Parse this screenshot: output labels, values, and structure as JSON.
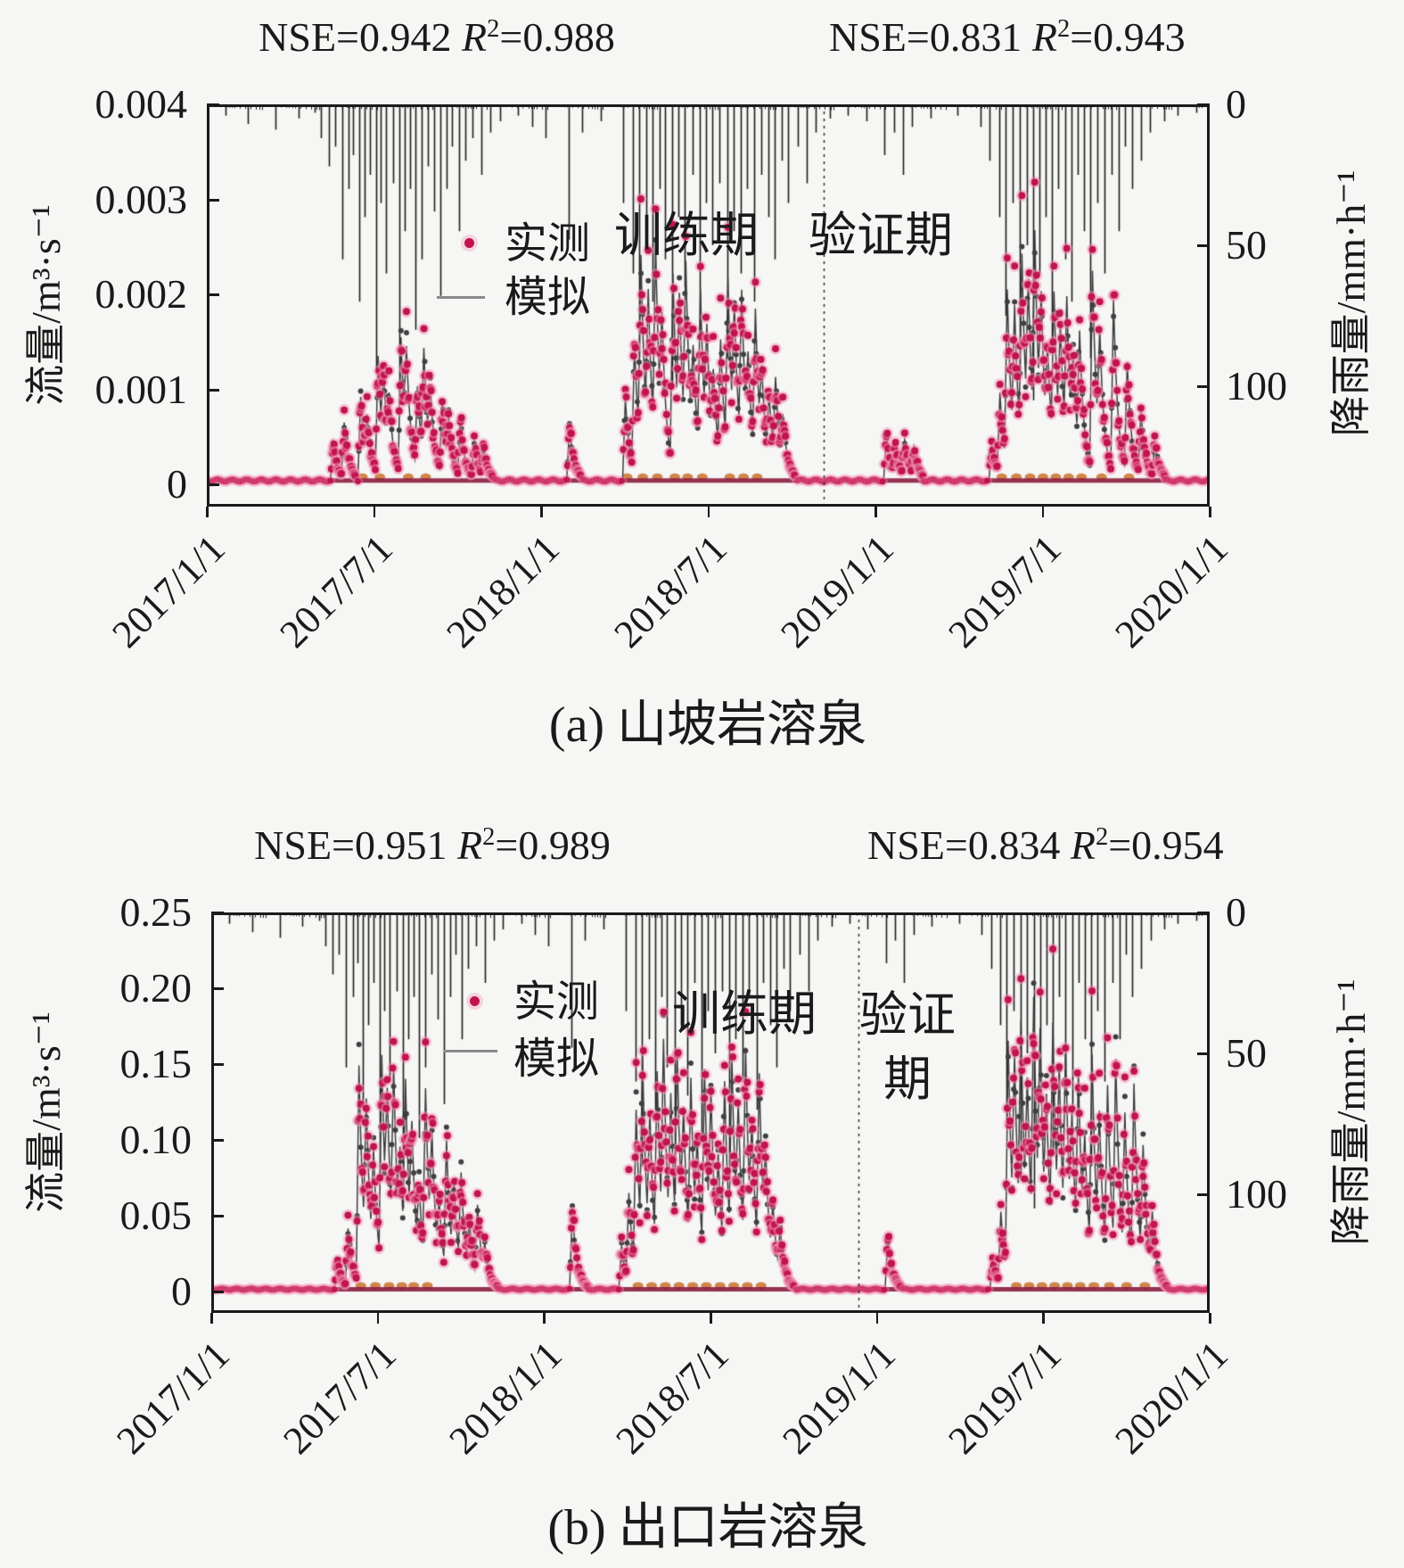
{
  "symbols": {
    "r": "R",
    "sup2": "2"
  },
  "colors": {
    "background": "#f6f6f4",
    "text": "#1a1a1a",
    "observed": "#c0134f",
    "observed_halo": "#f291b4",
    "simulated": "#3c3c3c",
    "rain": "#1c1c1c",
    "baseline": "#8c1d3f",
    "accent_orange": "#c9722c"
  },
  "rain_events_days": [
    [
      20,
      4
    ],
    [
      45,
      7
    ],
    [
      75,
      9
    ],
    [
      100,
      5
    ],
    [
      118,
      3
    ],
    [
      125,
      12
    ],
    [
      133,
      22
    ],
    [
      140,
      15
    ],
    [
      148,
      55
    ],
    [
      155,
      30
    ],
    [
      160,
      18
    ],
    [
      166,
      70
    ],
    [
      172,
      40
    ],
    [
      178,
      25
    ],
    [
      185,
      95
    ],
    [
      190,
      35
    ],
    [
      196,
      60
    ],
    [
      203,
      28
    ],
    [
      210,
      105
    ],
    [
      216,
      45
    ],
    [
      222,
      30
    ],
    [
      228,
      80
    ],
    [
      235,
      55
    ],
    [
      241,
      22
    ],
    [
      248,
      38
    ],
    [
      255,
      68
    ],
    [
      262,
      30
    ],
    [
      268,
      15
    ],
    [
      275,
      45
    ],
    [
      282,
      20
    ],
    [
      290,
      12
    ],
    [
      300,
      25
    ],
    [
      310,
      10
    ],
    [
      320,
      6
    ],
    [
      340,
      4
    ],
    [
      355,
      8
    ],
    [
      370,
      12
    ],
    [
      395,
      48
    ],
    [
      410,
      10
    ],
    [
      430,
      6
    ],
    [
      455,
      35
    ],
    [
      465,
      60
    ],
    [
      472,
      90
    ],
    [
      480,
      45
    ],
    [
      487,
      70
    ],
    [
      494,
      30
    ],
    [
      500,
      55
    ],
    [
      508,
      100
    ],
    [
      515,
      40
    ],
    [
      522,
      65
    ],
    [
      530,
      25
    ],
    [
      538,
      80
    ],
    [
      545,
      35
    ],
    [
      552,
      50
    ],
    [
      560,
      28
    ],
    [
      568,
      90
    ],
    [
      575,
      45
    ],
    [
      583,
      60
    ],
    [
      590,
      30
    ],
    [
      598,
      70
    ],
    [
      605,
      25
    ],
    [
      613,
      40
    ],
    [
      620,
      55
    ],
    [
      628,
      20
    ],
    [
      635,
      35
    ],
    [
      645,
      15
    ],
    [
      655,
      28
    ],
    [
      665,
      10
    ],
    [
      680,
      5
    ],
    [
      700,
      4
    ],
    [
      720,
      6
    ],
    [
      740,
      18
    ],
    [
      750,
      10
    ],
    [
      760,
      25
    ],
    [
      770,
      8
    ],
    [
      790,
      5
    ],
    [
      820,
      4
    ],
    [
      845,
      8
    ],
    [
      855,
      20
    ],
    [
      865,
      40
    ],
    [
      872,
      75
    ],
    [
      880,
      35
    ],
    [
      888,
      95
    ],
    [
      895,
      50
    ],
    [
      902,
      105
    ],
    [
      909,
      60
    ],
    [
      916,
      40
    ],
    [
      923,
      85
    ],
    [
      930,
      30
    ],
    [
      937,
      55
    ],
    [
      944,
      70
    ],
    [
      951,
      25
    ],
    [
      958,
      45
    ],
    [
      965,
      90
    ],
    [
      972,
      35
    ],
    [
      980,
      60
    ],
    [
      988,
      25
    ],
    [
      996,
      45
    ],
    [
      1003,
      15
    ],
    [
      1010,
      30
    ],
    [
      1020,
      20
    ],
    [
      1030,
      10
    ],
    [
      1045,
      6
    ],
    [
      1060,
      4
    ],
    [
      1080,
      3
    ]
  ],
  "chart_data": [
    {
      "type": "line",
      "panel": "a",
      "title": "(a) 山坡岩溶泉",
      "stats": {
        "train_nse": 0.942,
        "train_r2": 0.988,
        "valid_nse": 0.831,
        "valid_r2": 0.943
      },
      "stats_text": {
        "train_nse": "NSE=0.942",
        "train_r2": "=0.988",
        "valid_nse": "NSE=0.831",
        "valid_r2": "=0.943"
      },
      "legend": {
        "observed": "实测",
        "simulated": "模拟"
      },
      "period_labels": {
        "train": "训练期",
        "valid_line1": "验证期",
        "valid_line2": ""
      },
      "ylabel_left": "流量/m³·s⁻¹",
      "yticks_left_labels": [
        "0.004",
        "0.003",
        "0.002",
        "0.001",
        "0"
      ],
      "ylim_left": [
        0,
        0.004
      ],
      "ylabel_right": "降雨量/mm·h⁻¹",
      "yticks_right_labels": [
        "0",
        "50",
        "100"
      ],
      "ylim_right": [
        0,
        140
      ],
      "right_axis_inverted": true,
      "x_tick_labels": [
        "2017/1/1",
        "2017/7/1",
        "2018/1/1",
        "2018/7/1",
        "2019/1/1",
        "2019/7/1",
        "2020/1/1"
      ],
      "x_range_days": [
        0,
        1095
      ],
      "train_valid_split_frac": 0.615,
      "baseflow": 4e-05,
      "flow_events_days": [
        [
          138,
          0.0004
        ],
        [
          150,
          0.0006
        ],
        [
          168,
          0.0009
        ],
        [
          175,
          0.0005
        ],
        [
          187,
          0.0013
        ],
        [
          193,
          0.0008
        ],
        [
          199,
          0.0006
        ],
        [
          212,
          0.0015
        ],
        [
          218,
          0.001
        ],
        [
          230,
          0.0009
        ],
        [
          237,
          0.0012
        ],
        [
          244,
          0.0007
        ],
        [
          257,
          0.0008
        ],
        [
          264,
          0.0005
        ],
        [
          277,
          0.0006
        ],
        [
          292,
          0.0004
        ],
        [
          302,
          0.0003
        ],
        [
          396,
          0.0006
        ],
        [
          457,
          0.0009
        ],
        [
          467,
          0.0014
        ],
        [
          474,
          0.0021
        ],
        [
          482,
          0.0016
        ],
        [
          490,
          0.0022
        ],
        [
          497,
          0.0012
        ],
        [
          509,
          0.0021
        ],
        [
          516,
          0.0015
        ],
        [
          523,
          0.0019
        ],
        [
          531,
          0.001
        ],
        [
          539,
          0.0018
        ],
        [
          546,
          0.0012
        ],
        [
          553,
          0.0008
        ],
        [
          561,
          0.0013
        ],
        [
          569,
          0.0019
        ],
        [
          576,
          0.0014
        ],
        [
          584,
          0.0017
        ],
        [
          591,
          0.0009
        ],
        [
          599,
          0.0016
        ],
        [
          606,
          0.0008
        ],
        [
          614,
          0.0007
        ],
        [
          621,
          0.0009
        ],
        [
          629,
          0.0005
        ],
        [
          742,
          0.0005
        ],
        [
          752,
          0.0003
        ],
        [
          762,
          0.0004
        ],
        [
          772,
          0.0003
        ],
        [
          857,
          0.0004
        ],
        [
          866,
          0.0009
        ],
        [
          874,
          0.0019
        ],
        [
          882,
          0.0015
        ],
        [
          890,
          0.0021
        ],
        [
          897,
          0.0016
        ],
        [
          904,
          0.0022
        ],
        [
          911,
          0.0014
        ],
        [
          918,
          0.001
        ],
        [
          925,
          0.0017
        ],
        [
          932,
          0.0012
        ],
        [
          939,
          0.0016
        ],
        [
          946,
          0.0009
        ],
        [
          953,
          0.0013
        ],
        [
          967,
          0.0022
        ],
        [
          975,
          0.0012
        ],
        [
          990,
          0.0019
        ],
        [
          1005,
          0.0012
        ],
        [
          1020,
          0.0007
        ],
        [
          1035,
          0.0004
        ]
      ]
    },
    {
      "type": "line",
      "panel": "b",
      "title": "(b) 出口岩溶泉",
      "stats": {
        "train_nse": 0.951,
        "train_r2": 0.989,
        "valid_nse": 0.834,
        "valid_r2": 0.954
      },
      "stats_text": {
        "train_nse": "NSE=0.951",
        "train_r2": "=0.989",
        "valid_nse": "NSE=0.834",
        "valid_r2": "=0.954"
      },
      "legend": {
        "observed": "实测",
        "simulated": "模拟"
      },
      "period_labels": {
        "train": "训练期",
        "valid_line1": "验证",
        "valid_line2": "期"
      },
      "ylabel_left": "流量/m³·s⁻¹",
      "yticks_left_labels": [
        "0.25",
        "0.20",
        "0.15",
        "0.10",
        "0.05",
        "0"
      ],
      "ylim_left": [
        0,
        0.25
      ],
      "ylabel_right": "降雨量/mm·h⁻¹",
      "yticks_right_labels": [
        "0",
        "50",
        "100"
      ],
      "ylim_right": [
        0,
        140
      ],
      "right_axis_inverted": true,
      "x_tick_labels": [
        "2017/1/1",
        "2017/7/1",
        "2018/1/1",
        "2018/7/1",
        "2019/1/1",
        "2019/7/1",
        "2020/1/1"
      ],
      "x_range_days": [
        0,
        1095
      ],
      "train_valid_split_frac": 0.648,
      "baseflow": 0.0015,
      "flow_events_days": [
        [
          138,
          0.02
        ],
        [
          150,
          0.04
        ],
        [
          162,
          0.15
        ],
        [
          170,
          0.1
        ],
        [
          178,
          0.07
        ],
        [
          187,
          0.145
        ],
        [
          193,
          0.09
        ],
        [
          200,
          0.12
        ],
        [
          207,
          0.06
        ],
        [
          213,
          0.115
        ],
        [
          220,
          0.08
        ],
        [
          228,
          0.05
        ],
        [
          235,
          0.12
        ],
        [
          242,
          0.075
        ],
        [
          250,
          0.04
        ],
        [
          258,
          0.09
        ],
        [
          266,
          0.055
        ],
        [
          274,
          0.065
        ],
        [
          283,
          0.035
        ],
        [
          292,
          0.05
        ],
        [
          300,
          0.02
        ],
        [
          396,
          0.055
        ],
        [
          450,
          0.03
        ],
        [
          458,
          0.06
        ],
        [
          466,
          0.11
        ],
        [
          473,
          0.13
        ],
        [
          481,
          0.09
        ],
        [
          489,
          0.125
        ],
        [
          496,
          0.135
        ],
        [
          504,
          0.1
        ],
        [
          511,
          0.13
        ],
        [
          518,
          0.085
        ],
        [
          526,
          0.12
        ],
        [
          533,
          0.07
        ],
        [
          541,
          0.13
        ],
        [
          548,
          0.1
        ],
        [
          556,
          0.065
        ],
        [
          563,
          0.12
        ],
        [
          571,
          0.13
        ],
        [
          578,
          0.09
        ],
        [
          586,
          0.14
        ],
        [
          593,
          0.075
        ],
        [
          601,
          0.125
        ],
        [
          608,
          0.06
        ],
        [
          616,
          0.04
        ],
        [
          624,
          0.03
        ],
        [
          742,
          0.035
        ],
        [
          857,
          0.02
        ],
        [
          866,
          0.05
        ],
        [
          874,
          0.16
        ],
        [
          881,
          0.12
        ],
        [
          888,
          0.145
        ],
        [
          895,
          0.1
        ],
        [
          902,
          0.165
        ],
        [
          909,
          0.13
        ],
        [
          916,
          0.09
        ],
        [
          923,
          0.15
        ],
        [
          930,
          0.11
        ],
        [
          937,
          0.13
        ],
        [
          944,
          0.08
        ],
        [
          951,
          0.12
        ],
        [
          958,
          0.07
        ],
        [
          966,
          0.14
        ],
        [
          974,
          0.09
        ],
        [
          983,
          0.12
        ],
        [
          992,
          0.135
        ],
        [
          1002,
          0.1
        ],
        [
          1012,
          0.125
        ],
        [
          1022,
          0.08
        ],
        [
          1032,
          0.04
        ]
      ]
    }
  ]
}
